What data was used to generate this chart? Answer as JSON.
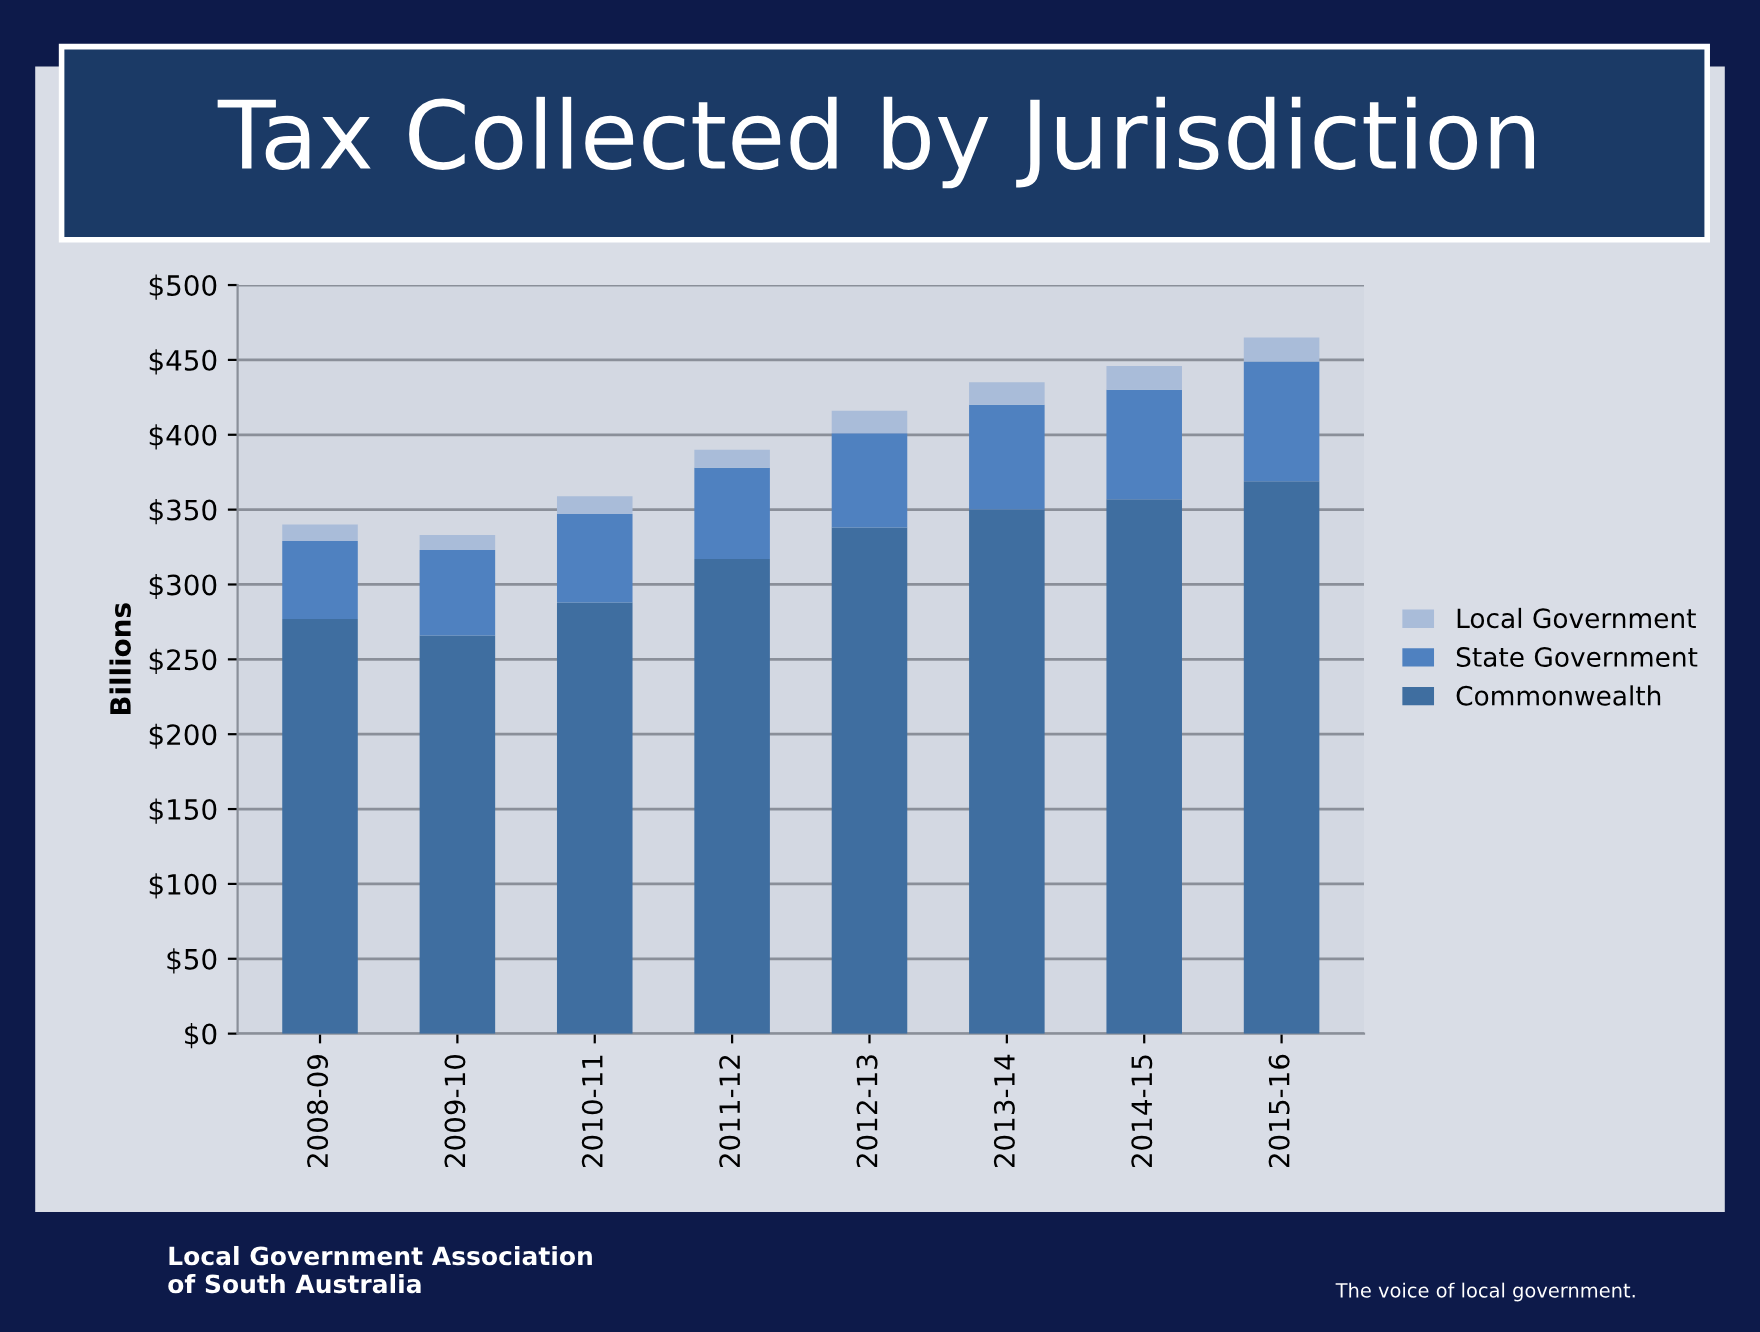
{
  "chart_data": {
    "type": "bar",
    "title": "Tax Collected by Jurisdiction",
    "ylabel": "Billions",
    "categories": [
      "2008-09",
      "2009-10",
      "2010-11",
      "2011-12",
      "2012-13",
      "2013-14",
      "2014-15",
      "2015-16"
    ],
    "stacked": true,
    "series": [
      {
        "name": "Commonwealth",
        "color": "#3f6ea0",
        "values": [
          277,
          266,
          288,
          317,
          338,
          350,
          357,
          369
        ]
      },
      {
        "name": "State Government",
        "color": "#4f81c0",
        "values": [
          52,
          57,
          59,
          61,
          63,
          70,
          73,
          80
        ]
      },
      {
        "name": "Local Government",
        "color": "#a9bcd9",
        "values": [
          11,
          10,
          12,
          12,
          15,
          15,
          16,
          16
        ]
      }
    ],
    "ylim": [
      0,
      500
    ],
    "yticks": [
      {
        "value": 0,
        "label": "$0"
      },
      {
        "value": 50,
        "label": "$50"
      },
      {
        "value": 100,
        "label": "$100"
      },
      {
        "value": 150,
        "label": "$150"
      },
      {
        "value": 200,
        "label": "$200"
      },
      {
        "value": 250,
        "label": "$250"
      },
      {
        "value": 300,
        "label": "$300"
      },
      {
        "value": 350,
        "label": "$350"
      },
      {
        "value": 400,
        "label": "$400"
      },
      {
        "value": 450,
        "label": "$450"
      },
      {
        "value": 500,
        "label": "$500"
      }
    ],
    "grid": "y",
    "legend": "right",
    "annotations": [
      "Local Government Association\nof South Australia",
      "The voice of local government."
    ]
  }
}
